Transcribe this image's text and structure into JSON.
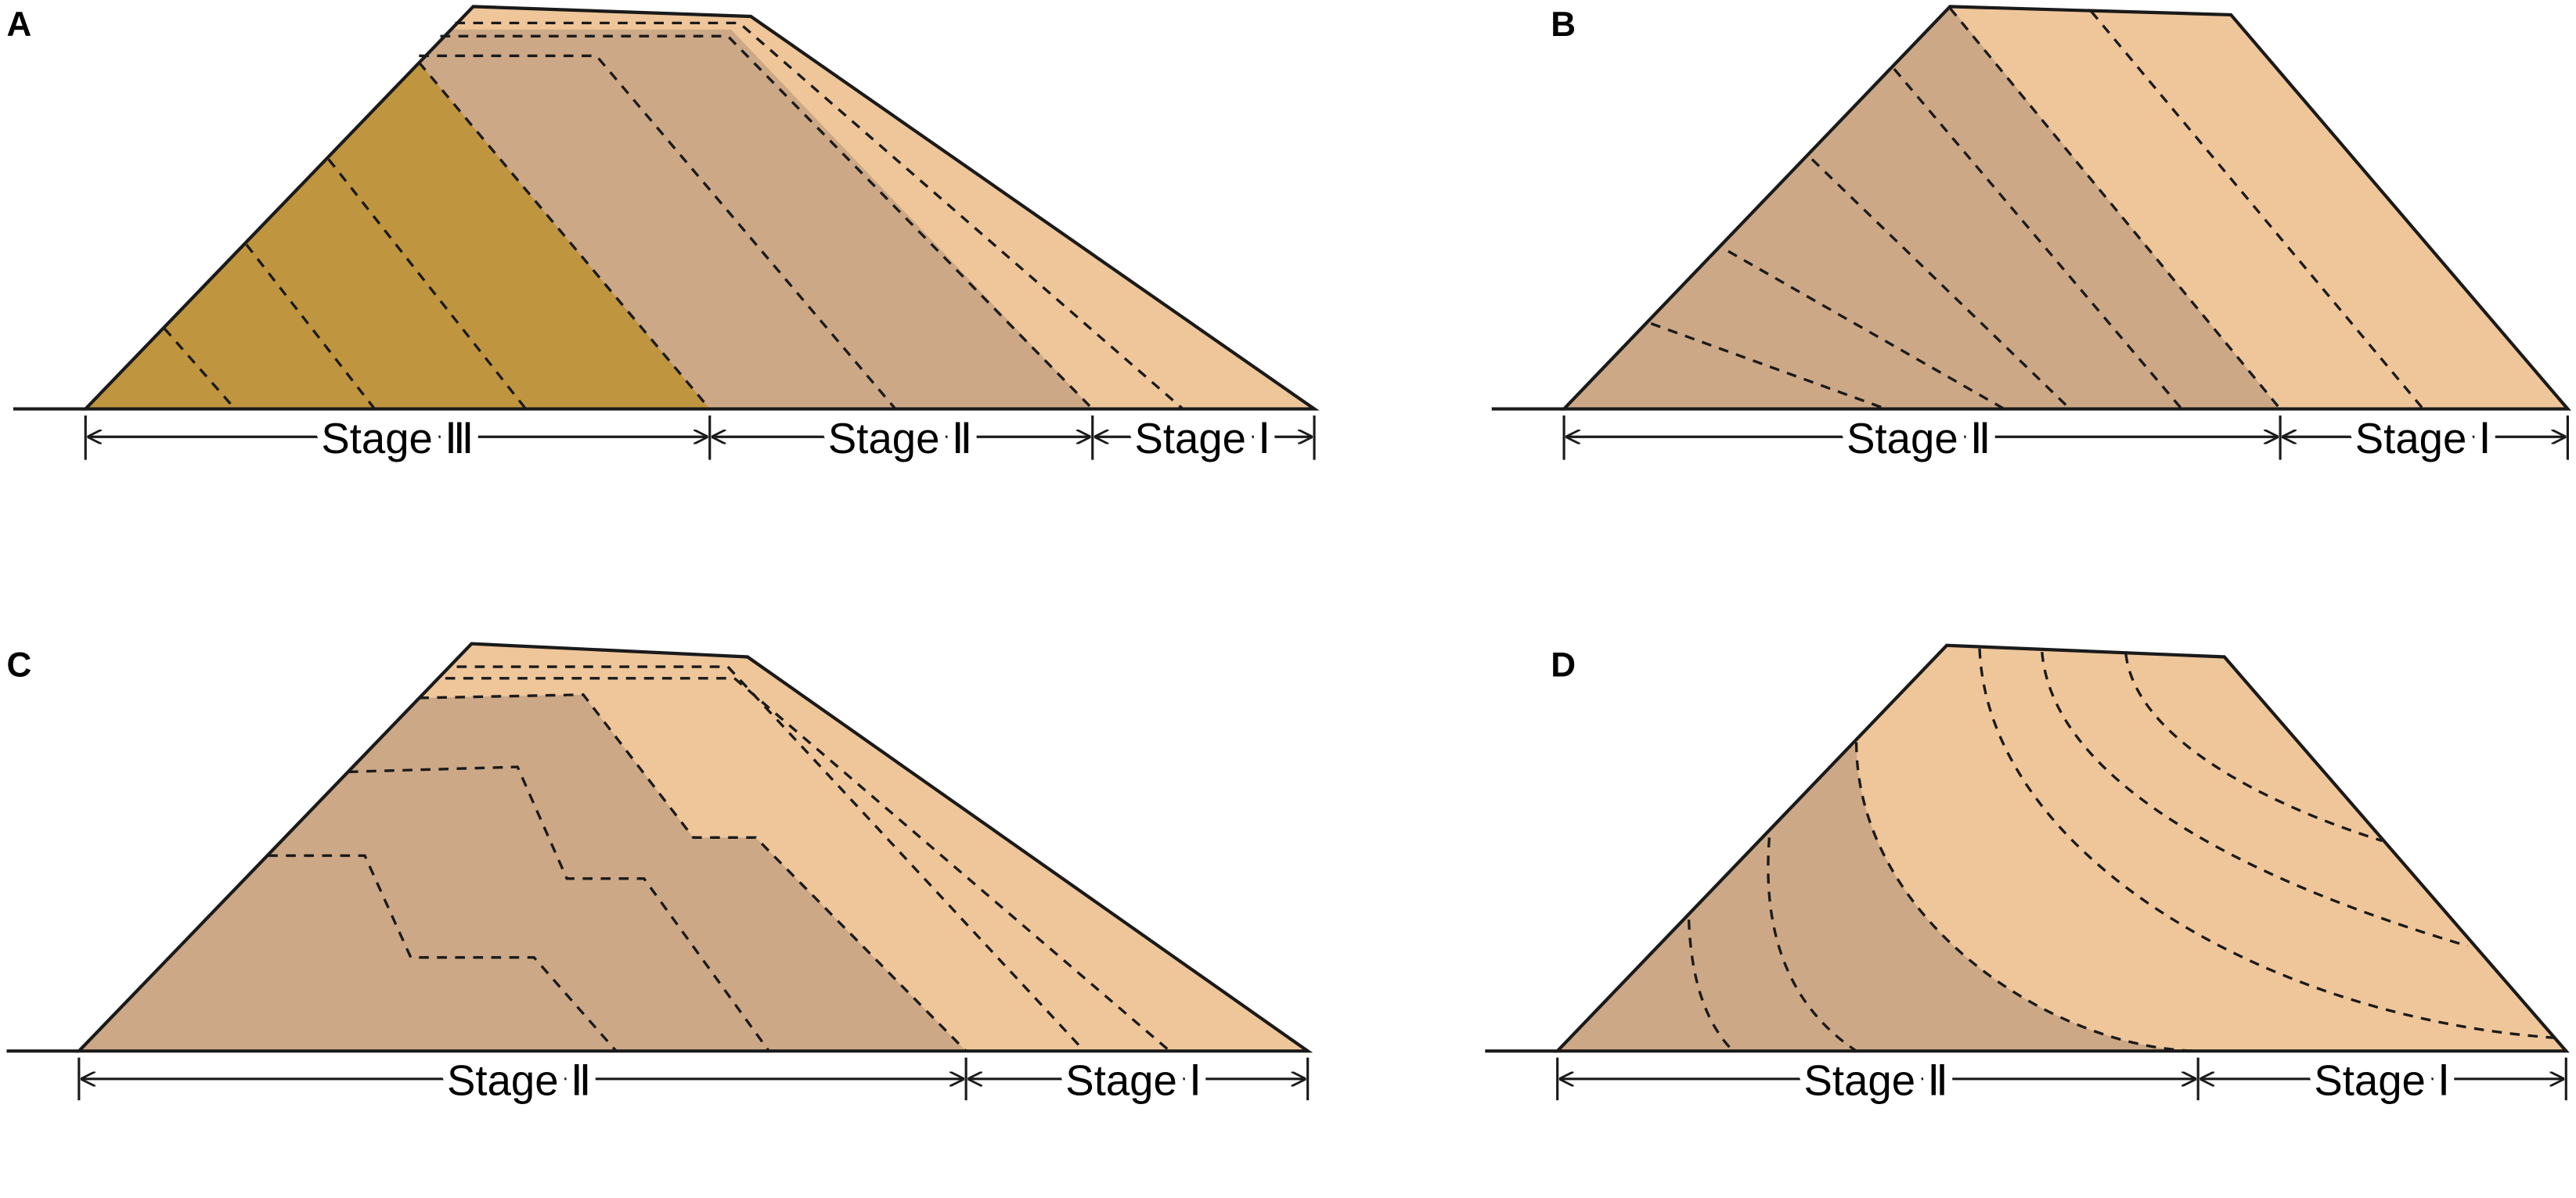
{
  "panels": [
    {
      "label": "A",
      "stages": [
        "Stage Ⅲ",
        "Stage Ⅱ",
        "Stage Ⅰ"
      ]
    },
    {
      "label": "B",
      "stages": [
        "Stage Ⅱ",
        "Stage Ⅰ"
      ]
    },
    {
      "label": "C",
      "stages": [
        "Stage Ⅱ",
        "Stage Ⅰ"
      ]
    },
    {
      "label": "D",
      "stages": [
        "Stage Ⅱ",
        "Stage Ⅰ"
      ]
    }
  ]
}
